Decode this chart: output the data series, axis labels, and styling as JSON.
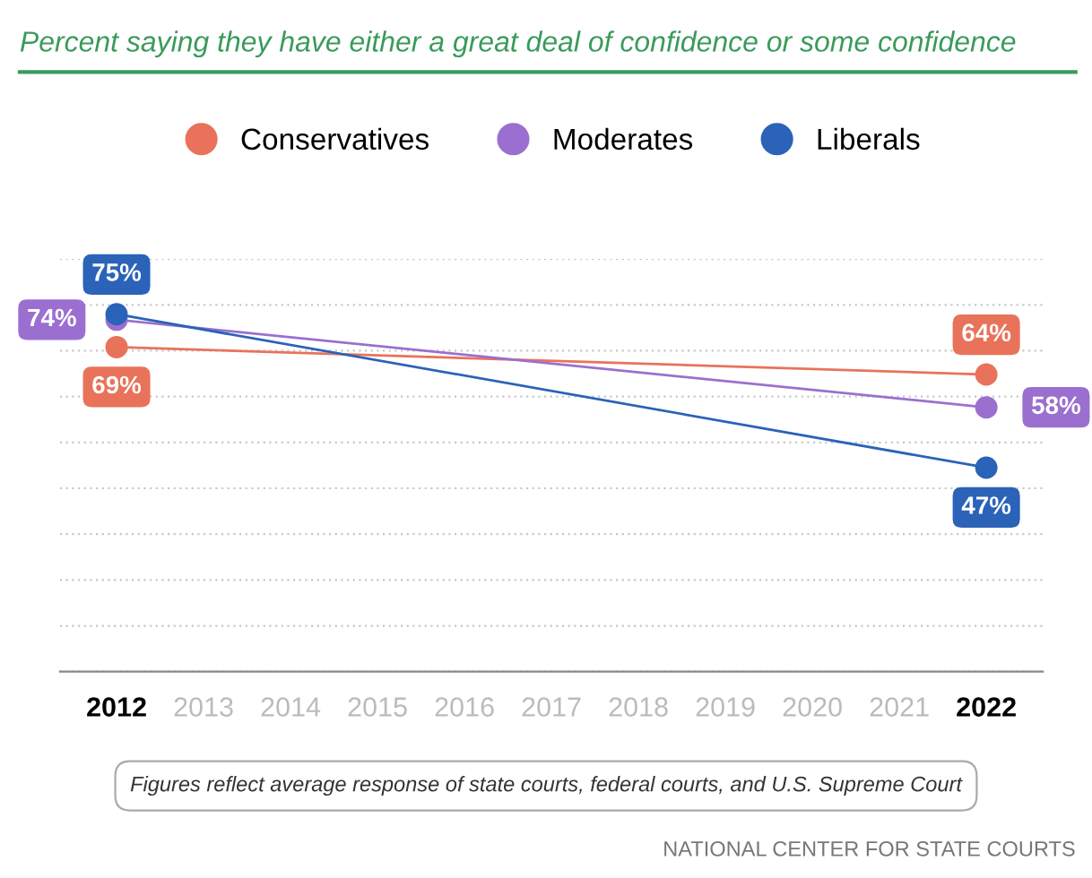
{
  "chart_data": {
    "type": "line",
    "title": "Percent saying they have either a great deal of confidence or some confidence",
    "x": [
      2012,
      2022
    ],
    "xlim": [
      2011.35,
      2022.65
    ],
    "xticks": [
      2012,
      2013,
      2014,
      2015,
      2016,
      2017,
      2018,
      2019,
      2020,
      2021,
      2022
    ],
    "tick_labels": "x",
    "series": [
      {
        "name": "Conservatives",
        "color": "#e8735a",
        "values": [
          69,
          64
        ],
        "value_labels": [
          "69%",
          "64%"
        ]
      },
      {
        "name": "Moderates",
        "color": "#9b6fcf",
        "values": [
          74,
          58
        ],
        "value_labels": [
          "74%",
          "58%"
        ]
      },
      {
        "name": "Liberals",
        "color": "#2a63b8",
        "values": [
          75,
          47
        ],
        "value_labels": [
          "75%",
          "47%"
        ]
      }
    ],
    "grid": "y",
    "legend": "top",
    "marker": "circle",
    "line_style": "solid",
    "annotations": [
      "Figures reflect average response of state courts, federal courts, and U.S. Supreme Court",
      "NATIONAL CENTER FOR STATE COURTS"
    ]
  }
}
